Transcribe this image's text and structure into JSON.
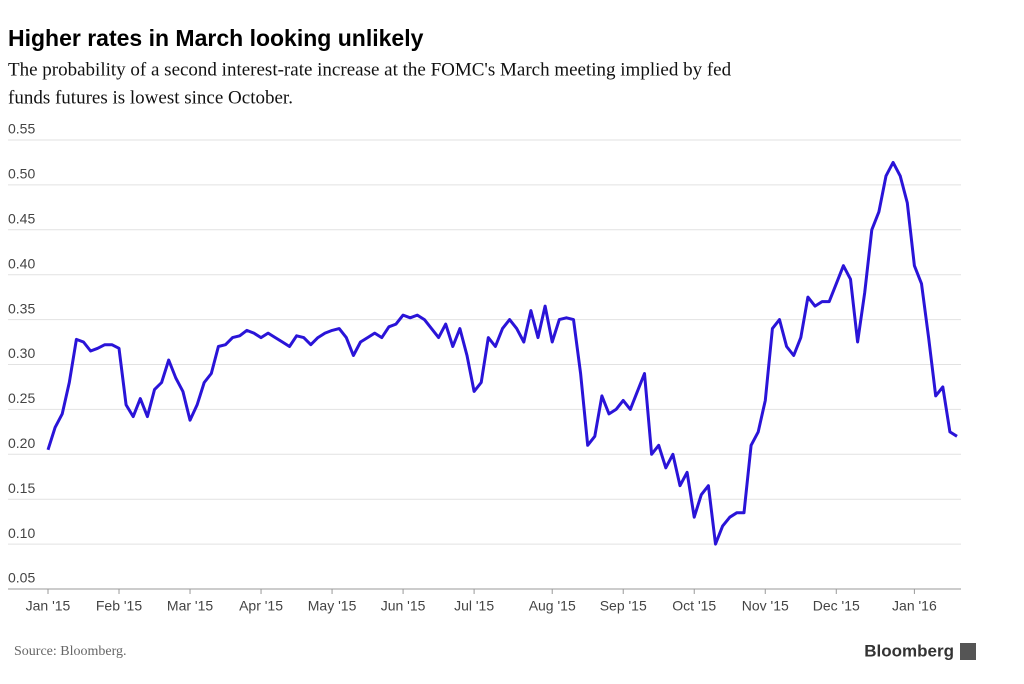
{
  "chart_data": {
    "type": "line",
    "title": "Higher rates in March looking unlikely",
    "subtitle": [
      "The probability of a second interest-rate increase at the FOMC's March meeting implied by fed",
      "funds futures is lowest since October."
    ],
    "source": "Source: Bloomberg.",
    "logo": "Bloomberg",
    "color": "#2a14d8",
    "grid": true,
    "ylim": [
      0.05,
      0.55
    ],
    "yticks": [
      0.05,
      {
        "value": 0.1,
        "label": "0.10"
      },
      0.15,
      {
        "value": 0.2,
        "label": "0.20"
      },
      0.25,
      {
        "value": 0.3,
        "label": "0.30"
      },
      0.35,
      {
        "value": 0.4,
        "label": "0.40"
      },
      0.45,
      {
        "value": 0.5,
        "label": "0.50"
      },
      0.55
    ],
    "categories": [
      "Jan '15",
      null,
      null,
      null,
      null,
      null,
      null,
      null,
      null,
      null,
      "Feb '15",
      null,
      null,
      null,
      null,
      null,
      null,
      null,
      null,
      null,
      "Mar '15",
      null,
      null,
      null,
      null,
      null,
      null,
      null,
      null,
      null,
      "Apr '15",
      null,
      null,
      null,
      null,
      null,
      null,
      null,
      null,
      null,
      "May '15",
      null,
      null,
      null,
      null,
      null,
      null,
      null,
      null,
      null,
      "Jun '15",
      null,
      null,
      null,
      null,
      null,
      null,
      null,
      null,
      null,
      "Jul '15",
      null,
      null,
      null,
      null,
      null,
      null,
      null,
      null,
      null,
      null,
      "Aug '15",
      null,
      null,
      null,
      null,
      null,
      null,
      null,
      null,
      null,
      "Sep '15",
      null,
      null,
      null,
      null,
      null,
      null,
      null,
      null,
      null,
      "Oct '15",
      null,
      null,
      null,
      null,
      null,
      null,
      null,
      null,
      null,
      "Nov '15",
      null,
      null,
      null,
      null,
      null,
      null,
      null,
      null,
      null,
      "Dec '15",
      null,
      null,
      null,
      null,
      null,
      null,
      null,
      null,
      null,
      null,
      "Jan '16",
      null,
      null,
      null,
      null,
      null,
      null
    ],
    "values": [
      0.205,
      0.23,
      0.245,
      0.28,
      0.328,
      0.325,
      0.315,
      0.318,
      0.322,
      0.322,
      0.318,
      0.255,
      0.242,
      0.262,
      0.242,
      0.272,
      0.28,
      0.305,
      0.285,
      0.27,
      0.238,
      0.255,
      0.28,
      0.29,
      0.32,
      0.322,
      0.33,
      0.332,
      0.338,
      0.335,
      0.33,
      0.335,
      0.33,
      0.325,
      0.32,
      0.332,
      0.33,
      0.322,
      0.33,
      0.335,
      0.338,
      0.34,
      0.33,
      0.31,
      0.325,
      0.33,
      0.335,
      0.33,
      0.342,
      0.345,
      0.355,
      0.352,
      0.355,
      0.35,
      0.34,
      0.33,
      0.345,
      0.32,
      0.34,
      0.31,
      0.27,
      0.28,
      0.33,
      0.32,
      0.34,
      0.35,
      0.34,
      0.325,
      0.36,
      0.33,
      0.365,
      0.325,
      0.35,
      0.352,
      0.35,
      0.29,
      0.21,
      0.22,
      0.265,
      0.245,
      0.25,
      0.26,
      0.25,
      0.27,
      0.29,
      0.2,
      0.21,
      0.185,
      0.2,
      0.165,
      0.18,
      0.13,
      0.155,
      0.165,
      0.1,
      0.12,
      0.13,
      0.135,
      0.135,
      0.21,
      0.225,
      0.26,
      0.34,
      0.35,
      0.32,
      0.31,
      0.33,
      0.375,
      0.365,
      0.37,
      0.37,
      0.39,
      0.41,
      0.395,
      0.325,
      0.38,
      0.45,
      0.47,
      0.51,
      0.525,
      0.51,
      0.48,
      0.41,
      0.39,
      0.33,
      0.265,
      0.275,
      0.225,
      0.22
    ]
  }
}
